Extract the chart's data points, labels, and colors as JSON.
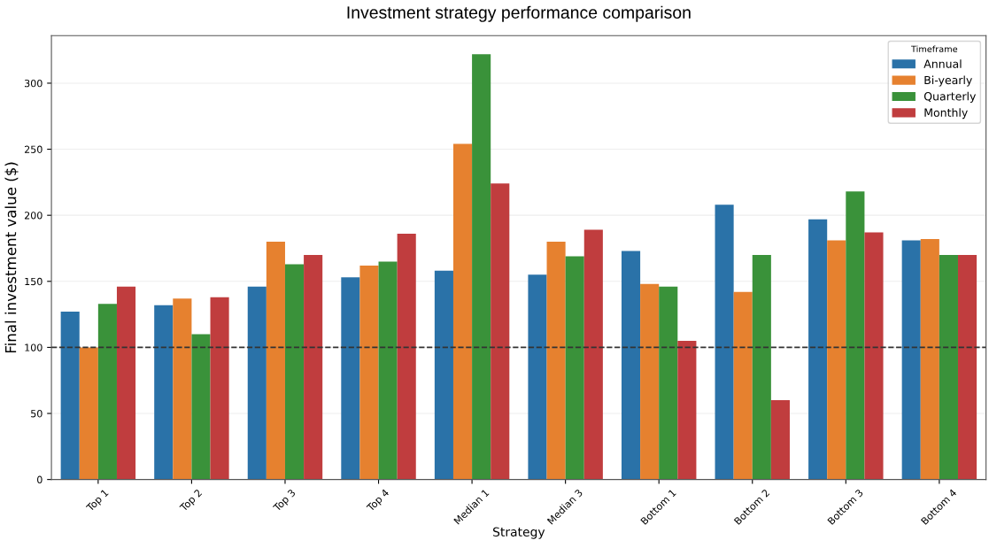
{
  "chart_data": {
    "type": "bar",
    "title": "Investment strategy performance comparison",
    "xlabel": "Strategy",
    "ylabel": "Final investment value ($)",
    "legend_title": "Timeframe",
    "categories": [
      "Top 1",
      "Top 2",
      "Top 3",
      "Top 4",
      "Median 1",
      "Median 3",
      "Bottom 1",
      "Bottom 2",
      "Bottom 3",
      "Bottom 4"
    ],
    "series": [
      {
        "name": "Annual",
        "color": "#2a72a8",
        "values": [
          127,
          132,
          146,
          153,
          158,
          155,
          173,
          208,
          197,
          181
        ]
      },
      {
        "name": "Bi-yearly",
        "color": "#e6812f",
        "values": [
          100,
          137,
          180,
          162,
          254,
          180,
          148,
          142,
          181,
          182
        ]
      },
      {
        "name": "Quarterly",
        "color": "#3a923a",
        "values": [
          133,
          110,
          163,
          165,
          322,
          169,
          146,
          170,
          218,
          170
        ]
      },
      {
        "name": "Monthly",
        "color": "#c03d3e",
        "values": [
          146,
          138,
          170,
          186,
          224,
          189,
          105,
          60,
          187,
          170
        ]
      }
    ],
    "ylim": [
      0,
      336
    ],
    "yticks": [
      0,
      50,
      100,
      150,
      200,
      250,
      300
    ],
    "grid": "y",
    "legend": "top right",
    "ref_lines": [
      {
        "axis": "y",
        "value": 100,
        "label": null,
        "color": "#333333",
        "line_style": "dashed"
      }
    ]
  }
}
